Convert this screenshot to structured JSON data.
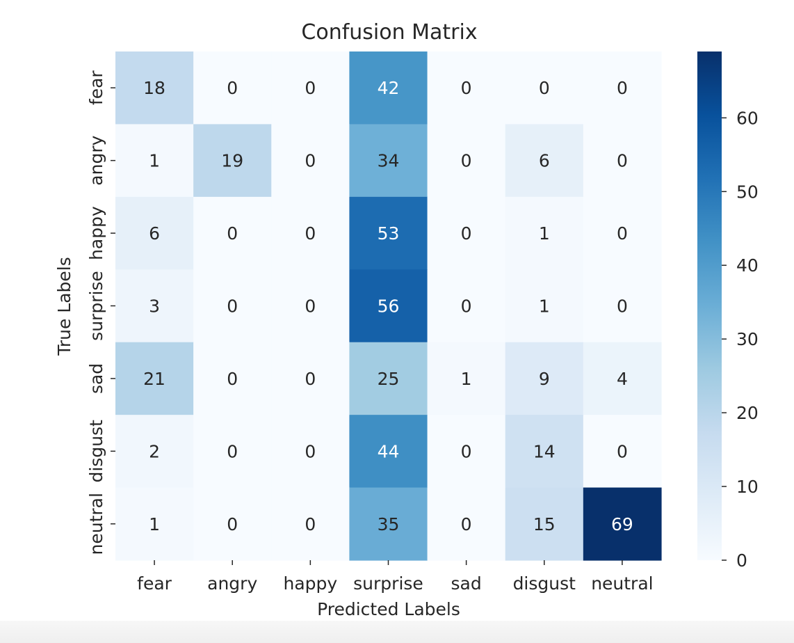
{
  "chart_data": {
    "type": "heatmap",
    "title": "Confusion Matrix",
    "xlabel": "Predicted Labels",
    "ylabel": "True Labels",
    "x_categories": [
      "fear",
      "angry",
      "happy",
      "surprise",
      "sad",
      "disgust",
      "neutral"
    ],
    "y_categories": [
      "fear",
      "angry",
      "happy",
      "surprise",
      "sad",
      "disgust",
      "neutral"
    ],
    "values": [
      [
        18,
        0,
        0,
        42,
        0,
        0,
        0
      ],
      [
        1,
        19,
        0,
        34,
        0,
        6,
        0
      ],
      [
        6,
        0,
        0,
        53,
        0,
        1,
        0
      ],
      [
        3,
        0,
        0,
        56,
        0,
        1,
        0
      ],
      [
        21,
        0,
        0,
        25,
        1,
        9,
        4
      ],
      [
        2,
        0,
        0,
        44,
        0,
        14,
        0
      ],
      [
        1,
        0,
        0,
        35,
        0,
        15,
        69
      ]
    ],
    "colorbar": {
      "min": 0,
      "max": 69,
      "ticks": [
        0,
        10,
        20,
        30,
        40,
        50,
        60
      ],
      "colormap": "Blues",
      "colors": [
        "#f7fbff",
        "#deebf7",
        "#c6dbef",
        "#9ecae1",
        "#6baed6",
        "#4292c6",
        "#2171b5",
        "#08519c",
        "#08306b"
      ]
    },
    "grid": false
  }
}
